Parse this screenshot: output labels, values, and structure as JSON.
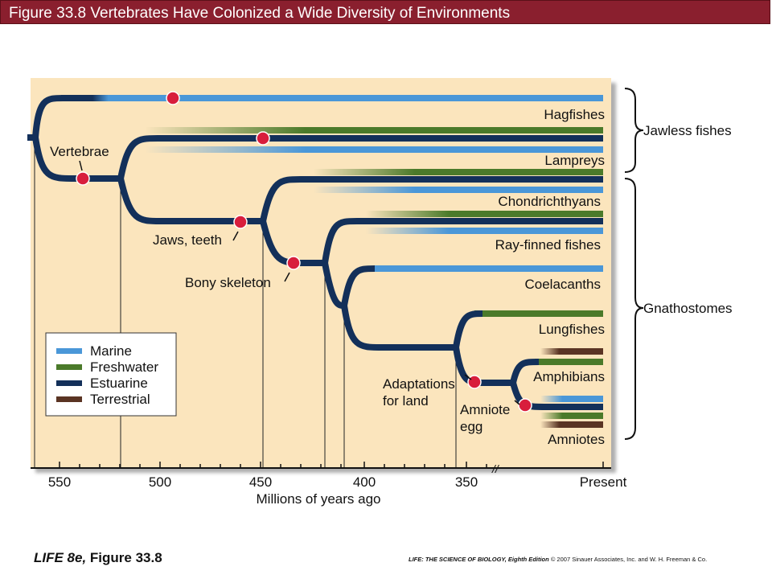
{
  "header": {
    "title": "Figure 33.8 Vertebrates Have Colonized a Wide Diversity of Environments"
  },
  "colors": {
    "marine": "#4a97d8",
    "freshwater": "#4b7a2a",
    "estuarine": "#13305a",
    "terrestrial": "#5a3423",
    "panel_background": "#fbe5bd",
    "node": "#d81e3c",
    "header_background": "#8a1f2e"
  },
  "diagram": {
    "taxa": [
      "Hagfishes",
      "Lampreys",
      "Chondrichthyans",
      "Ray-finned fishes",
      "Coelacanths",
      "Lungfishes",
      "Amphibians",
      "Amniotes"
    ],
    "groups": [
      "Jawless fishes",
      "Gnathostomes"
    ],
    "traits": [
      "Vertebrae",
      "Jaws, teeth",
      "Bony skeleton",
      "Adaptations",
      "for land",
      "Amniote",
      "egg"
    ],
    "legend": [
      {
        "label": "Marine",
        "color": "#4a97d8"
      },
      {
        "label": "Freshwater",
        "color": "#4b7a2a"
      },
      {
        "label": "Estuarine",
        "color": "#13305a"
      },
      {
        "label": "Terrestrial",
        "color": "#5a3423"
      }
    ],
    "axis": {
      "ticks": [
        "550",
        "500",
        "450",
        "400",
        "350",
        "Present"
      ],
      "label": "Millions of years ago",
      "break_mark": "//"
    }
  },
  "footer": {
    "left_book": "LIFE 8e,",
    "left_fig": " Figure 33.8",
    "right_book": "LIFE: THE SCIENCE OF BIOLOGY, Eighth Edition",
    "right_copy": "  © 2007 Sinauer Associates, Inc. and W. H. Freeman & Co."
  }
}
